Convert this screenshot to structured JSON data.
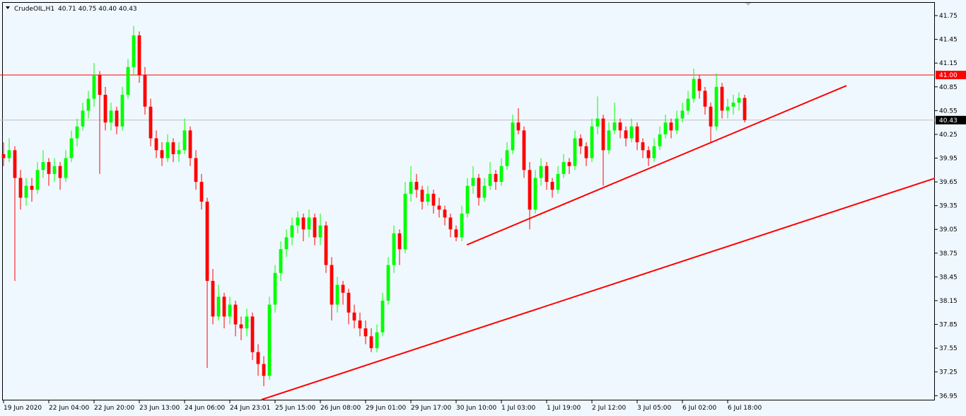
{
  "chart_data": {
    "type": "candlestick",
    "title": "CrudeOIL,H1",
    "quote": "40.71 40.75 40.40 40.43",
    "bull_color": "#00ff00",
    "bear_color": "#ff0000",
    "background": "#f0f8ff",
    "xlim": [
      -0.625,
      164.625
    ],
    "ylim": [
      36.89,
      41.92
    ],
    "yticks": [
      36.95,
      37.25,
      37.55,
      37.85,
      38.15,
      38.45,
      38.75,
      39.05,
      39.35,
      39.65,
      39.95,
      40.25,
      40.55,
      40.85,
      41.15,
      41.45,
      41.75
    ],
    "xticks": [
      {
        "value": 0,
        "label": "19 Jun 2020"
      },
      {
        "value": 8,
        "label": "22 Jun 04:00"
      },
      {
        "value": 16,
        "label": "22 Jun 20:00"
      },
      {
        "value": 24,
        "label": "23 Jun 13:00"
      },
      {
        "value": 32,
        "label": "24 Jun 06:00"
      },
      {
        "value": 40,
        "label": "24 Jun 23:01"
      },
      {
        "value": 48,
        "label": "25 Jun 15:00"
      },
      {
        "value": 56,
        "label": "26 Jun 08:00"
      },
      {
        "value": 64,
        "label": "29 Jun 01:00"
      },
      {
        "value": 72,
        "label": "29 Jun 17:00"
      },
      {
        "value": 80,
        "label": "30 Jun 10:00"
      },
      {
        "value": 88,
        "label": "1 Jul 03:00"
      },
      {
        "value": 96,
        "label": "1 Jul 19:00"
      },
      {
        "value": 104,
        "label": "2 Jul 12:00"
      },
      {
        "value": 112,
        "label": "3 Jul 05:00"
      },
      {
        "value": 120,
        "label": "6 Jul 02:00"
      },
      {
        "value": 128,
        "label": "6 Jul 18:00"
      }
    ],
    "hlines": [
      {
        "value": 41.0,
        "label": "41.00",
        "color": "#ff0000",
        "label_color": "#ff0000"
      },
      {
        "value": 40.43,
        "label": "40.43",
        "color": "#c0c0c0",
        "label_color": "#000000"
      }
    ],
    "trendlines": [
      {
        "from": [
          81.9,
          38.855
        ],
        "to": [
          149,
          40.865
        ],
        "color": "#ff0000"
      },
      {
        "from": [
          45.6,
          36.9
        ],
        "to": [
          164.6,
          39.695
        ],
        "color": "#ff0000"
      }
    ],
    "candles": [
      [
        40.0,
        40.15,
        39.85,
        39.95
      ],
      [
        39.95,
        40.2,
        39.9,
        40.05
      ],
      [
        40.05,
        40.1,
        38.4,
        39.7
      ],
      [
        39.7,
        39.8,
        39.3,
        39.45
      ],
      [
        39.45,
        39.7,
        39.35,
        39.6
      ],
      [
        39.6,
        39.7,
        39.4,
        39.55
      ],
      [
        39.55,
        39.9,
        39.5,
        39.8
      ],
      [
        39.8,
        40.05,
        39.7,
        39.9
      ],
      [
        39.9,
        39.95,
        39.6,
        39.75
      ],
      [
        39.75,
        39.95,
        39.65,
        39.85
      ],
      [
        39.85,
        39.9,
        39.55,
        39.7
      ],
      [
        39.7,
        40.05,
        39.65,
        39.95
      ],
      [
        39.95,
        40.3,
        39.9,
        40.2
      ],
      [
        40.2,
        40.45,
        40.1,
        40.35
      ],
      [
        40.35,
        40.65,
        40.3,
        40.55
      ],
      [
        40.55,
        40.8,
        40.45,
        40.7
      ],
      [
        40.7,
        41.15,
        40.6,
        41.0
      ],
      [
        41.0,
        41.05,
        39.75,
        40.75
      ],
      [
        40.75,
        40.85,
        40.3,
        40.4
      ],
      [
        40.4,
        40.65,
        40.3,
        40.55
      ],
      [
        40.55,
        40.6,
        40.25,
        40.35
      ],
      [
        40.35,
        40.85,
        40.3,
        40.75
      ],
      [
        40.75,
        41.2,
        40.7,
        41.1
      ],
      [
        41.1,
        41.62,
        41.0,
        41.5
      ],
      [
        41.5,
        41.55,
        40.9,
        41.0
      ],
      [
        41.0,
        41.1,
        40.5,
        40.6
      ],
      [
        40.6,
        40.7,
        40.1,
        40.2
      ],
      [
        40.2,
        40.3,
        39.95,
        40.05
      ],
      [
        40.05,
        40.15,
        39.85,
        39.95
      ],
      [
        39.95,
        40.25,
        39.9,
        40.15
      ],
      [
        40.15,
        40.2,
        39.9,
        40.0
      ],
      [
        40.0,
        40.15,
        39.9,
        40.05
      ],
      [
        40.05,
        40.45,
        40.0,
        40.3
      ],
      [
        40.3,
        40.35,
        39.85,
        39.95
      ],
      [
        39.95,
        40.05,
        39.55,
        39.65
      ],
      [
        39.65,
        39.75,
        39.3,
        39.4
      ],
      [
        39.4,
        39.45,
        37.3,
        38.4
      ],
      [
        38.4,
        38.55,
        37.85,
        37.95
      ],
      [
        37.95,
        38.35,
        37.9,
        38.2
      ],
      [
        38.2,
        38.25,
        37.8,
        37.95
      ],
      [
        37.95,
        38.2,
        37.85,
        38.1
      ],
      [
        38.1,
        38.15,
        37.7,
        37.85
      ],
      [
        37.85,
        37.95,
        37.65,
        37.8
      ],
      [
        37.8,
        38.05,
        37.7,
        37.95
      ],
      [
        37.95,
        38.0,
        37.4,
        37.5
      ],
      [
        37.5,
        37.6,
        37.2,
        37.35
      ],
      [
        37.35,
        37.45,
        37.07,
        37.2
      ],
      [
        37.2,
        38.2,
        37.15,
        38.1
      ],
      [
        38.1,
        38.6,
        38.0,
        38.5
      ],
      [
        38.5,
        38.9,
        38.4,
        38.8
      ],
      [
        38.8,
        39.05,
        38.7,
        38.95
      ],
      [
        38.95,
        39.2,
        38.85,
        39.1
      ],
      [
        39.1,
        39.28,
        39.0,
        39.2
      ],
      [
        39.2,
        39.25,
        38.9,
        39.05
      ],
      [
        39.05,
        39.3,
        38.95,
        39.2
      ],
      [
        39.2,
        39.25,
        38.85,
        38.95
      ],
      [
        38.95,
        39.25,
        38.85,
        39.1
      ],
      [
        39.1,
        39.15,
        38.5,
        38.6
      ],
      [
        38.6,
        38.7,
        37.9,
        38.1
      ],
      [
        38.1,
        38.45,
        38.0,
        38.35
      ],
      [
        38.35,
        38.4,
        38.1,
        38.25
      ],
      [
        38.25,
        38.3,
        37.85,
        38.0
      ],
      [
        38.0,
        38.1,
        37.8,
        37.9
      ],
      [
        37.9,
        38.0,
        37.7,
        37.8
      ],
      [
        37.8,
        37.9,
        37.6,
        37.7
      ],
      [
        37.7,
        37.8,
        37.5,
        37.55
      ],
      [
        37.55,
        37.85,
        37.5,
        37.75
      ],
      [
        37.75,
        38.25,
        37.7,
        38.15
      ],
      [
        38.15,
        38.7,
        38.1,
        38.6
      ],
      [
        38.6,
        39.1,
        38.5,
        39.0
      ],
      [
        39.0,
        39.05,
        38.6,
        38.8
      ],
      [
        38.8,
        39.65,
        38.75,
        39.5
      ],
      [
        39.5,
        39.85,
        39.4,
        39.65
      ],
      [
        39.65,
        39.75,
        39.45,
        39.55
      ],
      [
        39.55,
        39.6,
        39.3,
        39.4
      ],
      [
        39.4,
        39.6,
        39.35,
        39.5
      ],
      [
        39.5,
        39.55,
        39.25,
        39.35
      ],
      [
        39.35,
        39.45,
        39.2,
        39.3
      ],
      [
        39.3,
        39.35,
        39.1,
        39.2
      ],
      [
        39.2,
        39.25,
        38.95,
        39.05
      ],
      [
        39.05,
        39.1,
        38.9,
        38.95
      ],
      [
        38.95,
        39.35,
        38.9,
        39.25
      ],
      [
        39.25,
        39.7,
        39.2,
        39.6
      ],
      [
        39.6,
        39.85,
        39.5,
        39.7
      ],
      [
        39.7,
        39.75,
        39.35,
        39.45
      ],
      [
        39.45,
        39.7,
        39.4,
        39.6
      ],
      [
        39.6,
        39.9,
        39.55,
        39.75
      ],
      [
        39.75,
        39.8,
        39.55,
        39.65
      ],
      [
        39.65,
        39.95,
        39.6,
        39.85
      ],
      [
        39.85,
        40.15,
        39.8,
        40.05
      ],
      [
        40.05,
        40.5,
        40.0,
        40.4
      ],
      [
        40.4,
        40.58,
        40.25,
        40.3
      ],
      [
        40.3,
        40.35,
        39.7,
        39.8
      ],
      [
        39.8,
        39.9,
        39.05,
        39.3
      ],
      [
        39.3,
        39.8,
        39.25,
        39.7
      ],
      [
        39.7,
        39.95,
        39.6,
        39.85
      ],
      [
        39.85,
        39.9,
        39.55,
        39.65
      ],
      [
        39.65,
        39.7,
        39.45,
        39.55
      ],
      [
        39.55,
        39.85,
        39.5,
        39.75
      ],
      [
        39.75,
        40.0,
        39.7,
        39.9
      ],
      [
        39.9,
        39.95,
        39.75,
        39.85
      ],
      [
        39.85,
        40.3,
        39.8,
        40.2
      ],
      [
        40.2,
        40.25,
        40.0,
        40.1
      ],
      [
        40.1,
        40.15,
        39.85,
        39.95
      ],
      [
        39.95,
        40.45,
        39.9,
        40.35
      ],
      [
        40.35,
        40.73,
        40.25,
        40.45
      ],
      [
        40.45,
        40.5,
        39.6,
        40.05
      ],
      [
        40.05,
        40.4,
        40.0,
        40.3
      ],
      [
        40.3,
        40.65,
        40.25,
        40.4
      ],
      [
        40.4,
        40.45,
        40.2,
        40.3
      ],
      [
        40.3,
        40.35,
        40.1,
        40.2
      ],
      [
        40.2,
        40.45,
        40.15,
        40.35
      ],
      [
        40.35,
        40.4,
        40.05,
        40.15
      ],
      [
        40.15,
        40.2,
        39.95,
        40.05
      ],
      [
        40.05,
        40.1,
        39.85,
        39.95
      ],
      [
        39.95,
        40.2,
        39.9,
        40.1
      ],
      [
        40.1,
        40.35,
        40.05,
        40.25
      ],
      [
        40.25,
        40.5,
        40.2,
        40.4
      ],
      [
        40.4,
        40.45,
        40.2,
        40.3
      ],
      [
        40.3,
        40.55,
        40.25,
        40.45
      ],
      [
        40.45,
        40.65,
        40.4,
        40.55
      ],
      [
        40.55,
        40.8,
        40.5,
        40.7
      ],
      [
        40.7,
        41.08,
        40.65,
        40.95
      ],
      [
        40.95,
        41.0,
        40.7,
        40.8
      ],
      [
        40.8,
        40.85,
        40.5,
        40.6
      ],
      [
        40.6,
        40.65,
        40.15,
        40.35
      ],
      [
        40.35,
        41.02,
        40.3,
        40.85
      ],
      [
        40.85,
        40.9,
        40.45,
        40.55
      ],
      [
        40.55,
        40.7,
        40.45,
        40.6
      ],
      [
        40.6,
        40.75,
        40.5,
        40.65
      ],
      [
        40.65,
        40.78,
        40.55,
        40.71
      ],
      [
        40.71,
        40.75,
        40.4,
        40.43
      ]
    ]
  }
}
